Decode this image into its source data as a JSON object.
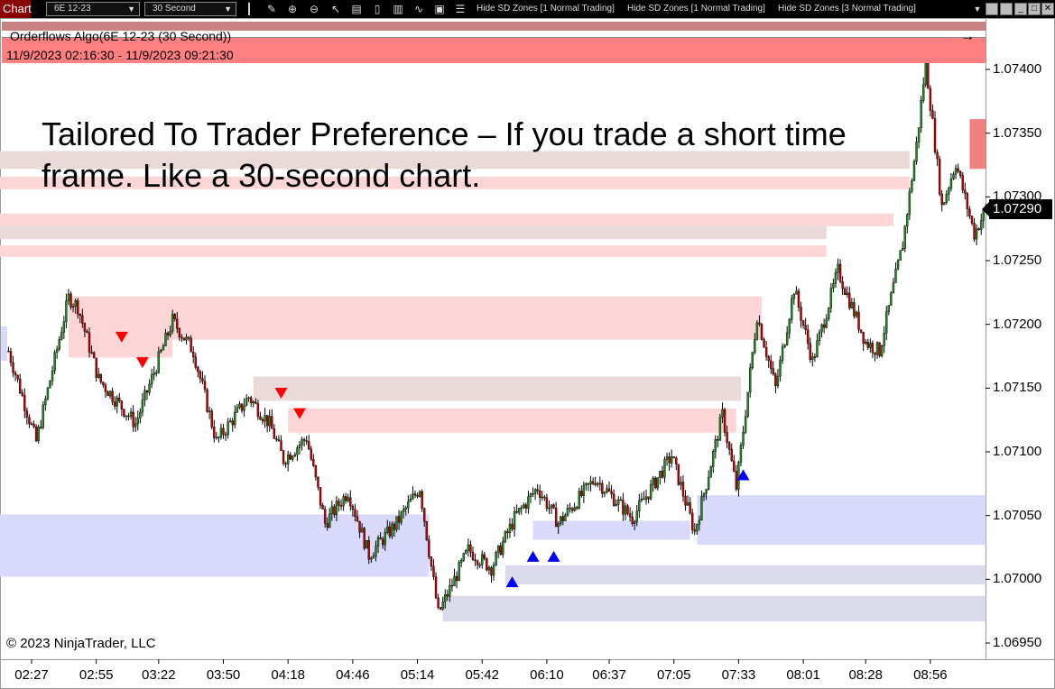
{
  "toolbar": {
    "chart_label": "Chart",
    "instrument": "6E 12-23",
    "interval": "30 Second",
    "icons": [
      "bar-style-icon",
      "pencil-icon",
      "zoom-in-icon",
      "zoom-out-icon",
      "pointer-icon",
      "data-box-icon",
      "properties-icon",
      "indicators-icon",
      "strategies-icon",
      "templates-icon",
      "list-icon"
    ],
    "hide_buttons": [
      "Hide SD Zones [1 Normal Trading]",
      "Hide SD Zones [1 Normal Trading]",
      "Hide SD Zones [3 Normal Trading]"
    ]
  },
  "header": {
    "title": "Orderflows Algo(6E 12-23 (30 Second))",
    "range": "11/9/2023 02:16:30 - 11/9/2023 09:21:30"
  },
  "overlay_text": "Tailored To Trader Preference – If you trade a short time frame. Like a 30-second chart.",
  "copyright": "© 2023 NinjaTrader, LLC",
  "colors": {
    "supply": "#fcd6d6",
    "supply_grey": "#ead9d9",
    "demand": "#d9d9fb",
    "demand_grey": "#dadaea",
    "up": "#1c8c1c",
    "down": "#c00000",
    "sell_signal": "#ff0000",
    "buy_signal": "#0000ff"
  },
  "chart_data": {
    "type": "candlestick",
    "instrument": "6E 12-23",
    "interval": "30 Second",
    "ylim": [
      1.0692,
      1.0745
    ],
    "y_ticks": [
      "1.07400",
      "1.07350",
      "1.07300",
      "1.07250",
      "1.07200",
      "1.07150",
      "1.07100",
      "1.07050",
      "1.07000",
      "1.06950"
    ],
    "x_ticks": [
      "02:27",
      "02:55",
      "03:22",
      "03:50",
      "04:18",
      "04:46",
      "05:14",
      "05:42",
      "06:10",
      "06:37",
      "07:05",
      "07:33",
      "08:01",
      "08:28",
      "08:56"
    ],
    "last_price": "1.07290",
    "price_path": [
      [
        "02:17",
        1.07179
      ],
      [
        "02:29",
        1.07108
      ],
      [
        "02:43",
        1.07221
      ],
      [
        "02:47",
        1.07214
      ],
      [
        "02:56",
        1.07157
      ],
      [
        "03:12",
        1.07122
      ],
      [
        "03:28",
        1.07203
      ],
      [
        "03:37",
        1.07179
      ],
      [
        "03:47",
        1.07108
      ],
      [
        "04:01",
        1.07143
      ],
      [
        "04:10",
        1.07122
      ],
      [
        "04:16",
        1.07094
      ],
      [
        "04:26",
        1.07111
      ],
      [
        "04:34",
        1.07044
      ],
      [
        "04:44",
        1.07069
      ],
      [
        "04:53",
        1.07019
      ],
      [
        "05:05",
        1.07044
      ],
      [
        "05:15",
        1.07072
      ],
      [
        "05:23",
        1.06973
      ],
      [
        "05:36",
        1.07023
      ],
      [
        "05:46",
        1.07009
      ],
      [
        "05:56",
        1.07048
      ],
      [
        "06:06",
        1.07072
      ],
      [
        "06:15",
        1.07044
      ],
      [
        "06:31",
        1.07079
      ],
      [
        "06:47",
        1.07048
      ],
      [
        "07:04",
        1.07097
      ],
      [
        "07:14",
        1.07037
      ],
      [
        "07:26",
        1.07129
      ],
      [
        "07:32",
        1.07072
      ],
      [
        "07:41",
        1.07207
      ],
      [
        "07:49",
        1.0715
      ],
      [
        "07:57",
        1.07228
      ],
      [
        "08:05",
        1.07171
      ],
      [
        "08:16",
        1.07242
      ],
      [
        "08:28",
        1.07186
      ],
      [
        "08:34",
        1.07179
      ],
      [
        "08:44",
        1.07263
      ],
      [
        "08:50",
        1.07341
      ],
      [
        "08:54",
        1.07406
      ],
      [
        "09:01",
        1.07292
      ],
      [
        "09:07",
        1.07327
      ],
      [
        "09:15",
        1.07271
      ],
      [
        "09:20",
        1.0729
      ]
    ],
    "supply_zones": [
      {
        "from": "02:13",
        "to": "08:47",
        "top": 1.07336,
        "bottom": 1.07322,
        "shade": "grey"
      },
      {
        "from": "02:13",
        "to": "08:47",
        "top": 1.07316,
        "bottom": 1.07306,
        "shade": "pink"
      },
      {
        "from": "02:13",
        "to": "08:40",
        "top": 1.07287,
        "bottom": 1.07277,
        "shade": "pink"
      },
      {
        "from": "02:13",
        "to": "08:11",
        "top": 1.07277,
        "bottom": 1.07267,
        "shade": "grey"
      },
      {
        "from": "02:13",
        "to": "08:11",
        "top": 1.07262,
        "bottom": 1.07253,
        "shade": "pink"
      },
      {
        "from": "02:43",
        "to": "07:43",
        "top": 1.07222,
        "bottom": 1.07188,
        "shade": "pink"
      },
      {
        "from": "02:43",
        "to": "03:28",
        "top": 1.07188,
        "bottom": 1.07174,
        "shade": "pink"
      },
      {
        "from": "04:03",
        "to": "07:34",
        "top": 1.07159,
        "bottom": 1.0714,
        "shade": "grey"
      },
      {
        "from": "04:18",
        "to": "07:32",
        "top": 1.07134,
        "bottom": 1.07115,
        "shade": "pink"
      },
      {
        "from": "09:13",
        "to": "09:20",
        "top": 1.07361,
        "bottom": 1.07322,
        "shade": "red"
      }
    ],
    "demand_zones": [
      {
        "from": "02:13",
        "to": "05:19",
        "top": 1.07051,
        "bottom": 1.07002,
        "shade": "blue"
      },
      {
        "from": "06:04",
        "to": "07:12",
        "top": 1.07046,
        "bottom": 1.07031,
        "shade": "blue"
      },
      {
        "from": "07:15",
        "to": "09:20",
        "top": 1.07066,
        "bottom": 1.07027,
        "shade": "blue"
      },
      {
        "from": "05:52",
        "to": "09:20",
        "top": 1.07011,
        "bottom": 1.06996,
        "shade": "grey"
      },
      {
        "from": "05:25",
        "to": "09:20",
        "top": 1.06987,
        "bottom": 1.06967,
        "shade": "grey"
      }
    ],
    "sell_signals": [
      [
        "03:06",
        1.0719
      ],
      [
        "03:15",
        1.0717
      ],
      [
        "04:15",
        1.07146
      ],
      [
        "04:23",
        1.0713
      ]
    ],
    "buy_signals": [
      [
        "05:55",
        1.06998
      ],
      [
        "06:04",
        1.07018
      ],
      [
        "06:13",
        1.07018
      ],
      [
        "07:35",
        1.07082
      ]
    ]
  }
}
